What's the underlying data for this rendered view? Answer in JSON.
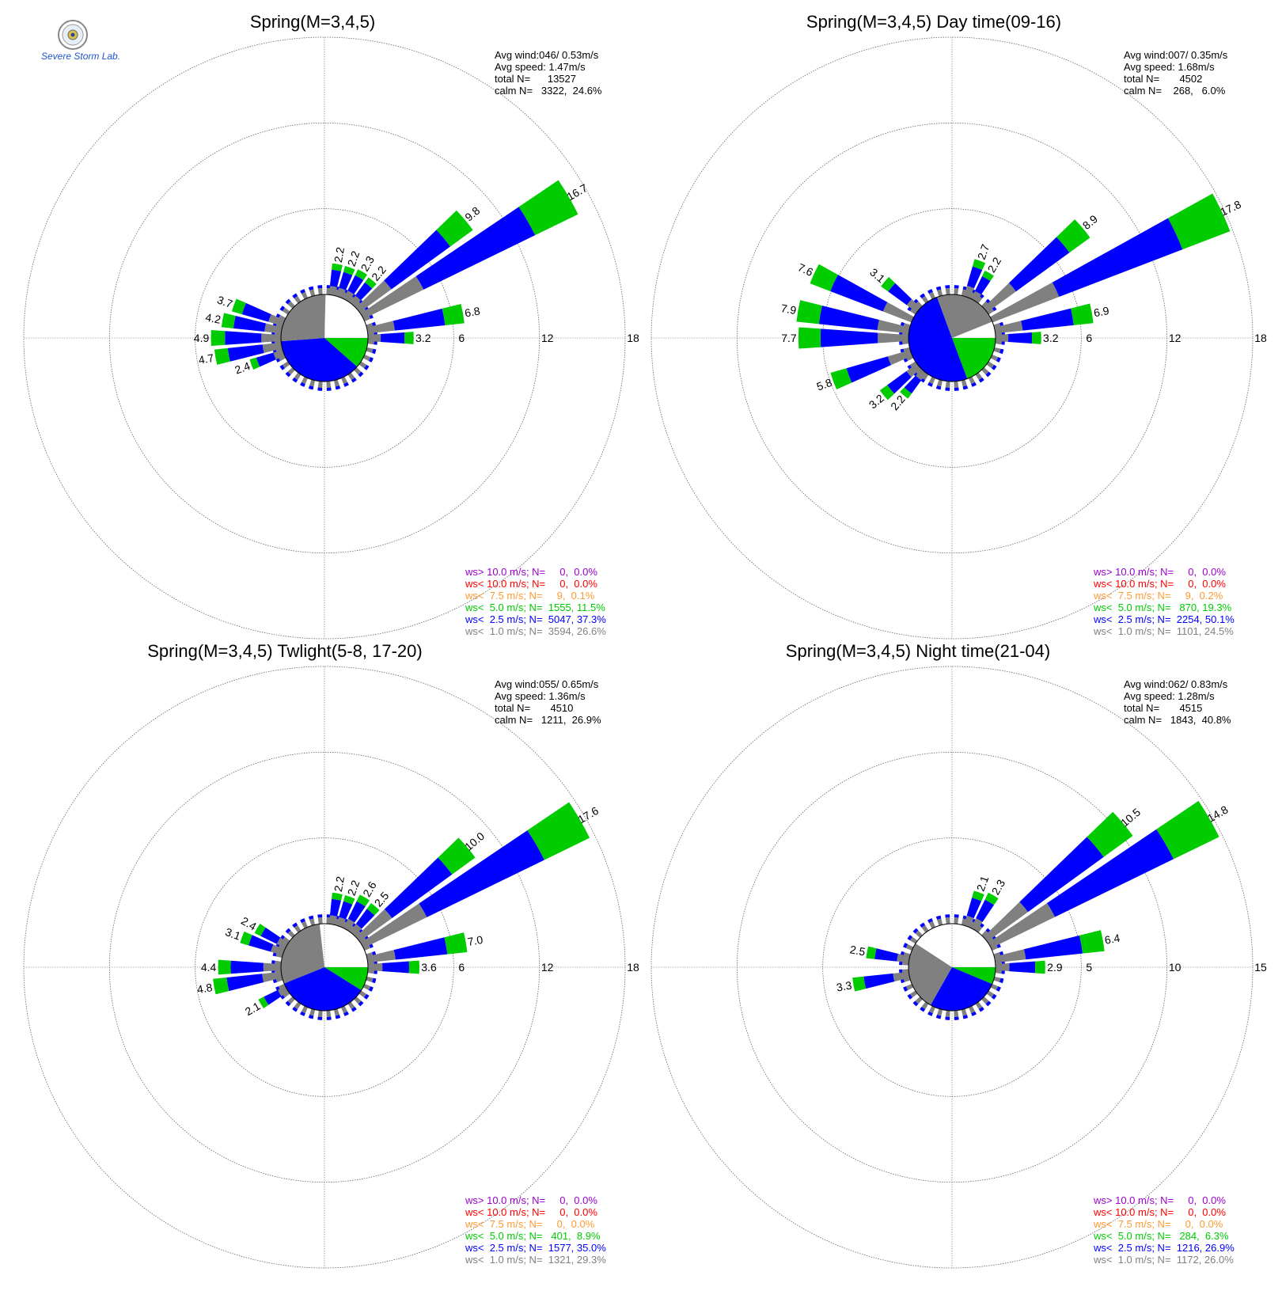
{
  "logo": {
    "name": "severe-storm-lab-logo",
    "text": "Severe Storm Lab."
  },
  "colors": {
    "ws_gt_10": "#9900cc",
    "ws_lt_10": "#ff0000",
    "ws_lt_7_5": "#ff9933",
    "ws_lt_5": "#00cc00",
    "ws_lt_2_5": "#0000ff",
    "ws_lt_1": "#808080",
    "grid": "#666666"
  },
  "chart_data": [
    {
      "type": "windrose",
      "title": "Spring(M=3,4,5)",
      "stats": [
        "Avg wind:046/ 0.53m/s",
        "Avg speed: 1.47m/s",
        "total N=      13527",
        "calm N=   3322,  24.6%"
      ],
      "ring_labels": [
        "6",
        "12",
        "18"
      ],
      "rmax": 18,
      "calm_pie": {
        "ws_lt_5": 11.5,
        "ws_lt_2_5": 37.3,
        "ws_lt_1": 26.6
      },
      "sectors": [
        {
          "dir": 10,
          "total": 2.2,
          "label": "2.2"
        },
        {
          "dir": 20,
          "total": 2.2,
          "label": "2.2"
        },
        {
          "dir": 30,
          "total": 2.3,
          "label": "2.3"
        },
        {
          "dir": 40,
          "total": 2.2,
          "label": "2.2"
        },
        {
          "dir": 50,
          "total": 9.8,
          "label": "9.8"
        },
        {
          "dir": 60,
          "total": 16.7,
          "label": "16.7"
        },
        {
          "dir": 80,
          "total": 6.8,
          "label": "6.8"
        },
        {
          "dir": 90,
          "total": 3.2,
          "label": "3.2"
        },
        {
          "dir": 250,
          "total": 2.4,
          "label": "2.4"
        },
        {
          "dir": 260,
          "total": 4.7,
          "label": "4.7"
        },
        {
          "dir": 270,
          "total": 4.9,
          "label": "4.9"
        },
        {
          "dir": 280,
          "total": 4.2,
          "label": "4.2"
        },
        {
          "dir": 290,
          "total": 3.7,
          "label": "3.7"
        }
      ],
      "legend": [
        {
          "key": "ws_gt_10",
          "text": "ws> 10.0 m/s; N=     0,  0.0%"
        },
        {
          "key": "ws_lt_10",
          "text": "ws< 10.0 m/s; N=     0,  0.0%"
        },
        {
          "key": "ws_lt_7_5",
          "text": "ws<  7.5 m/s; N=     9,  0.1%"
        },
        {
          "key": "ws_lt_5",
          "text": "ws<  5.0 m/s; N=  1555, 11.5%"
        },
        {
          "key": "ws_lt_2_5",
          "text": "ws<  2.5 m/s; N=  5047, 37.3%"
        },
        {
          "key": "ws_lt_1",
          "text": "ws<  1.0 m/s; N=  3594, 26.6%"
        }
      ]
    },
    {
      "type": "windrose",
      "title": "Spring(M=3,4,5) Day time(09-16)",
      "stats": [
        "Avg wind:007/ 0.35m/s",
        "Avg speed: 1.68m/s",
        "total N=       4502",
        "calm N=    268,   6.0%"
      ],
      "ring_labels": [
        "6",
        "12",
        "18"
      ],
      "rmax": 18,
      "calm_pie": {
        "ws_lt_5": 19.3,
        "ws_lt_2_5": 50.1,
        "ws_lt_1": 24.5
      },
      "sectors": [
        {
          "dir": 20,
          "total": 2.7,
          "label": "2.7"
        },
        {
          "dir": 30,
          "total": 2.2,
          "label": "2.2"
        },
        {
          "dir": 50,
          "total": 8.9,
          "label": "8.9"
        },
        {
          "dir": 65,
          "total": 17.8,
          "label": "17.8"
        },
        {
          "dir": 80,
          "total": 6.9,
          "label": "6.9"
        },
        {
          "dir": 90,
          "total": 3.2,
          "label": "3.2"
        },
        {
          "dir": 220,
          "total": 2.2,
          "label": "2.2"
        },
        {
          "dir": 230,
          "total": 3.2,
          "label": "3.2"
        },
        {
          "dir": 250,
          "total": 5.8,
          "label": "5.8"
        },
        {
          "dir": 270,
          "total": 7.7,
          "label": "7.7"
        },
        {
          "dir": 280,
          "total": 7.9,
          "label": "7.9"
        },
        {
          "dir": 295,
          "total": 7.6,
          "label": "7.6"
        },
        {
          "dir": 310,
          "total": 3.1,
          "label": "3.1"
        }
      ],
      "legend": [
        {
          "key": "ws_gt_10",
          "text": "ws> 10.0 m/s; N=     0,  0.0%"
        },
        {
          "key": "ws_lt_10",
          "text": "ws< 10.0 m/s; N=     0,  0.0%"
        },
        {
          "key": "ws_lt_7_5",
          "text": "ws<  7.5 m/s; N=     9,  0.2%"
        },
        {
          "key": "ws_lt_5",
          "text": "ws<  5.0 m/s; N=   870, 19.3%"
        },
        {
          "key": "ws_lt_2_5",
          "text": "ws<  2.5 m/s; N=  2254, 50.1%"
        },
        {
          "key": "ws_lt_1",
          "text": "ws<  1.0 m/s; N=  1101, 24.5%"
        }
      ]
    },
    {
      "type": "windrose",
      "title": "Spring(M=3,4,5) Twlight(5-8, 17-20)",
      "stats": [
        "Avg wind:055/ 0.65m/s",
        "Avg speed: 1.36m/s",
        "total N=       4510",
        "calm N=   1211,  26.9%"
      ],
      "ring_labels": [
        "6",
        "12",
        "18"
      ],
      "rmax": 18,
      "calm_pie": {
        "ws_lt_5": 8.9,
        "ws_lt_2_5": 35.0,
        "ws_lt_1": 29.3
      },
      "sectors": [
        {
          "dir": 10,
          "total": 2.2,
          "label": "2.2"
        },
        {
          "dir": 20,
          "total": 2.2,
          "label": "2.2"
        },
        {
          "dir": 30,
          "total": 2.6,
          "label": "2.6"
        },
        {
          "dir": 40,
          "total": 2.5,
          "label": "2.5"
        },
        {
          "dir": 50,
          "total": 10.0,
          "label": "10.0"
        },
        {
          "dir": 60,
          "total": 17.6,
          "label": "17.6"
        },
        {
          "dir": 80,
          "total": 7.0,
          "label": "7.0"
        },
        {
          "dir": 90,
          "total": 3.6,
          "label": "3.6"
        },
        {
          "dir": 240,
          "total": 2.1,
          "label": "2.1"
        },
        {
          "dir": 260,
          "total": 4.8,
          "label": "4.8"
        },
        {
          "dir": 270,
          "total": 4.4,
          "label": "4.4"
        },
        {
          "dir": 290,
          "total": 3.1,
          "label": "3.1"
        },
        {
          "dir": 300,
          "total": 2.4,
          "label": "2.4"
        }
      ],
      "legend": [
        {
          "key": "ws_gt_10",
          "text": "ws> 10.0 m/s; N=     0,  0.0%"
        },
        {
          "key": "ws_lt_10",
          "text": "ws< 10.0 m/s; N=     0,  0.0%"
        },
        {
          "key": "ws_lt_7_5",
          "text": "ws<  7.5 m/s; N=     0,  0.0%"
        },
        {
          "key": "ws_lt_5",
          "text": "ws<  5.0 m/s; N=   401,  8.9%"
        },
        {
          "key": "ws_lt_2_5",
          "text": "ws<  2.5 m/s; N=  1577, 35.0%"
        },
        {
          "key": "ws_lt_1",
          "text": "ws<  1.0 m/s; N=  1321, 29.3%"
        }
      ]
    },
    {
      "type": "windrose",
      "title": "Spring(M=3,4,5) Night time(21-04)",
      "stats": [
        "Avg wind:062/ 0.83m/s",
        "Avg speed: 1.28m/s",
        "total N=       4515",
        "calm N=   1843,  40.8%"
      ],
      "ring_labels": [
        "5",
        "10",
        "15"
      ],
      "rmax": 15,
      "calm_pie": {
        "ws_lt_5": 6.3,
        "ws_lt_2_5": 26.9,
        "ws_lt_1": 26.0
      },
      "sectors": [
        {
          "dir": 20,
          "total": 2.1,
          "label": "2.1"
        },
        {
          "dir": 30,
          "total": 2.3,
          "label": "2.3"
        },
        {
          "dir": 50,
          "total": 10.5,
          "label": "10.5"
        },
        {
          "dir": 60,
          "total": 14.8,
          "label": "14.8"
        },
        {
          "dir": 80,
          "total": 6.4,
          "label": "6.4"
        },
        {
          "dir": 90,
          "total": 2.9,
          "label": "2.9"
        },
        {
          "dir": 260,
          "total": 3.3,
          "label": "3.3"
        },
        {
          "dir": 280,
          "total": 2.5,
          "label": "2.5"
        }
      ],
      "legend": [
        {
          "key": "ws_gt_10",
          "text": "ws> 10.0 m/s; N=     0,  0.0%"
        },
        {
          "key": "ws_lt_10",
          "text": "ws< 10.0 m/s; N=     0,  0.0%"
        },
        {
          "key": "ws_lt_7_5",
          "text": "ws<  7.5 m/s; N=     0,  0.0%"
        },
        {
          "key": "ws_lt_5",
          "text": "ws<  5.0 m/s; N=   284,  6.3%"
        },
        {
          "key": "ws_lt_2_5",
          "text": "ws<  2.5 m/s; N=  1216, 26.9%"
        },
        {
          "key": "ws_lt_1",
          "text": "ws<  1.0 m/s; N=  1172, 26.0%"
        }
      ]
    }
  ]
}
